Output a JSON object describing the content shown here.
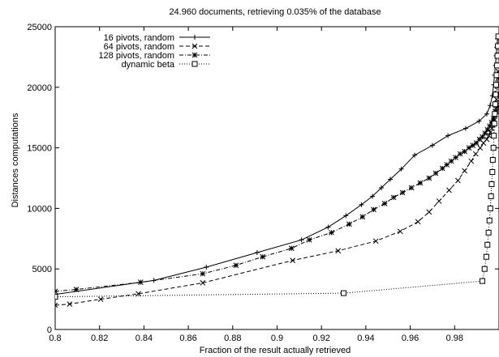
{
  "chart_data": {
    "type": "line",
    "title": "24.960 documents, retrieving 0.035% of the database",
    "xlabel": "Fraction of the result actually retrieved",
    "ylabel": "Distances computations",
    "xlim": [
      0.8,
      1.0
    ],
    "ylim": [
      0,
      25000
    ],
    "xticks": [
      0.8,
      0.82,
      0.84,
      0.86,
      0.88,
      0.9,
      0.92,
      0.94,
      0.96,
      0.98
    ],
    "xtick_labels": [
      "0.8",
      "0.82",
      "0.84",
      "0.86",
      "0.88",
      "0.9",
      "0.92",
      "0.94",
      "0.96",
      "0.98"
    ],
    "yticks": [
      0,
      5000,
      10000,
      15000,
      20000,
      25000
    ],
    "ytick_labels": [
      "0",
      "5000",
      "10000",
      "15000",
      "20000",
      "25000"
    ],
    "grid": false,
    "legend_position": "top-left",
    "series": [
      {
        "name": "16 pivots, random",
        "line": "solid",
        "marker": "plus",
        "x": [
          0.8,
          0.8445,
          0.8681,
          0.891,
          0.911,
          0.923,
          0.931,
          0.938,
          0.943,
          0.947,
          0.951,
          0.956,
          0.962,
          0.97,
          0.977,
          0.985,
          0.991,
          0.9945,
          0.996,
          0.997,
          0.9976,
          0.998,
          0.9984,
          0.9987,
          0.999,
          0.9993
        ],
        "y": [
          2900,
          4050,
          5150,
          6350,
          7400,
          8450,
          9400,
          10300,
          11000,
          11700,
          12400,
          13250,
          14400,
          15200,
          16000,
          16600,
          17200,
          17800,
          18500,
          19300,
          20200,
          21000,
          21800,
          22600,
          23300,
          24000
        ]
      },
      {
        "name": "64 pivots, random",
        "line": "dashed",
        "marker": "x",
        "x": [
          0.8,
          0.8065,
          0.8205,
          0.8375,
          0.8665,
          0.907,
          0.9275,
          0.9445,
          0.9555,
          0.9635,
          0.9685,
          0.973,
          0.9775,
          0.9815,
          0.9845,
          0.9875,
          0.9895,
          0.9915,
          0.993,
          0.9945,
          0.9955,
          0.9962,
          0.9968,
          0.9972,
          0.9976,
          0.998,
          0.9983,
          0.9986,
          0.9989,
          0.9991,
          0.9993,
          0.9995,
          0.9997
        ],
        "y": [
          2000,
          2100,
          2500,
          2950,
          3850,
          5700,
          6500,
          7300,
          8100,
          8900,
          9700,
          10600,
          11500,
          12300,
          13100,
          13900,
          14500,
          15000,
          15400,
          15700,
          16000,
          16300,
          16600,
          16900,
          17200,
          17600,
          18000,
          18500,
          19000,
          19500,
          20100,
          20700,
          21300
        ]
      },
      {
        "name": "128 pivots, random",
        "line": "dotdash",
        "marker": "star",
        "x": [
          0.8,
          0.8095,
          0.8385,
          0.8665,
          0.8815,
          0.8935,
          0.9065,
          0.9145,
          0.9245,
          0.9325,
          0.9385,
          0.9435,
          0.9485,
          0.9525,
          0.9565,
          0.9605,
          0.9645,
          0.9685,
          0.9715,
          0.9745,
          0.9765,
          0.9785,
          0.9805,
          0.9825,
          0.9845,
          0.9865,
          0.9882,
          0.9898,
          0.9912,
          0.9925,
          0.9937,
          0.9948,
          0.9958,
          0.9967,
          0.9975,
          0.9982,
          0.9988,
          0.9993
        ],
        "y": [
          3150,
          3300,
          3900,
          4600,
          5300,
          6000,
          6700,
          7400,
          8000,
          8700,
          9300,
          9900,
          10400,
          10900,
          11300,
          11700,
          12100,
          12500,
          12900,
          13300,
          13600,
          13900,
          14200,
          14500,
          14700,
          15000,
          15200,
          15400,
          15700,
          15900,
          16200,
          16500,
          16800,
          17100,
          17400,
          17700,
          18000,
          18400
        ]
      },
      {
        "name": "dynamic beta",
        "line": "dotted",
        "marker": "square",
        "x": [
          0.8,
          0.93,
          0.9925,
          0.9935,
          0.9943,
          0.9948,
          0.9953,
          0.9957,
          0.9961,
          0.9964,
          0.9967,
          0.997,
          0.9972,
          0.9975,
          0.9977,
          0.9979,
          0.9981,
          0.9983,
          0.9985,
          0.9987,
          0.9989,
          0.9991,
          0.9993,
          0.9995,
          0.9997
        ],
        "y": [
          2700,
          3000,
          4000,
          5000,
          6000,
          7000,
          8000,
          9000,
          10000,
          11000,
          12000,
          13000,
          14000,
          15000,
          16000,
          17000,
          17800,
          18600,
          19400,
          20200,
          21000,
          21800,
          22600,
          23400,
          24200
        ]
      }
    ]
  }
}
